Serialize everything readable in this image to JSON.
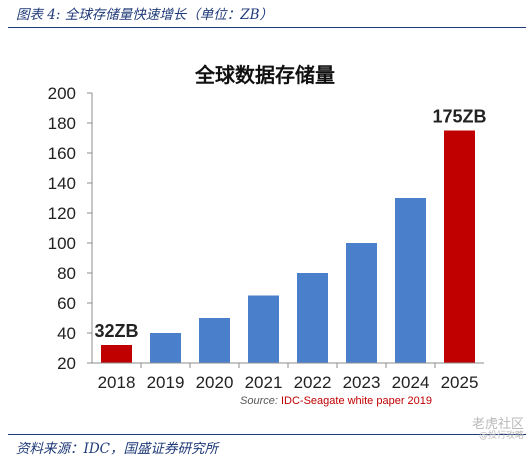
{
  "caption": "图表 4:  全球存储量快速增长（单位：ZB）",
  "footer_source": "资料来源：IDC，国盛证券研究所",
  "watermark": {
    "main": "老虎社区",
    "sub": "@投行攻略"
  },
  "chart_data": {
    "type": "bar",
    "title": "全球数据存储量",
    "xlabel": "",
    "ylabel": "",
    "categories": [
      "2018",
      "2019",
      "2020",
      "2021",
      "2022",
      "2023",
      "2024",
      "2025"
    ],
    "values": [
      32,
      40,
      50,
      65,
      80,
      100,
      130,
      175
    ],
    "ylim": [
      20,
      200
    ],
    "yticks": [
      20,
      40,
      60,
      80,
      100,
      120,
      140,
      160,
      180,
      200
    ],
    "grid": false,
    "legend": "none",
    "colors": {
      "default": "#4a7fcb",
      "highlight": "#c00000"
    },
    "highlighted_categories": [
      "2018",
      "2025"
    ],
    "data_labels": [
      {
        "category": "2018",
        "text": "32ZB"
      },
      {
        "category": "2025",
        "text": "175ZB"
      }
    ],
    "source_prefix": "Source: ",
    "source_text": "IDC-Seagate white paper 2019"
  }
}
